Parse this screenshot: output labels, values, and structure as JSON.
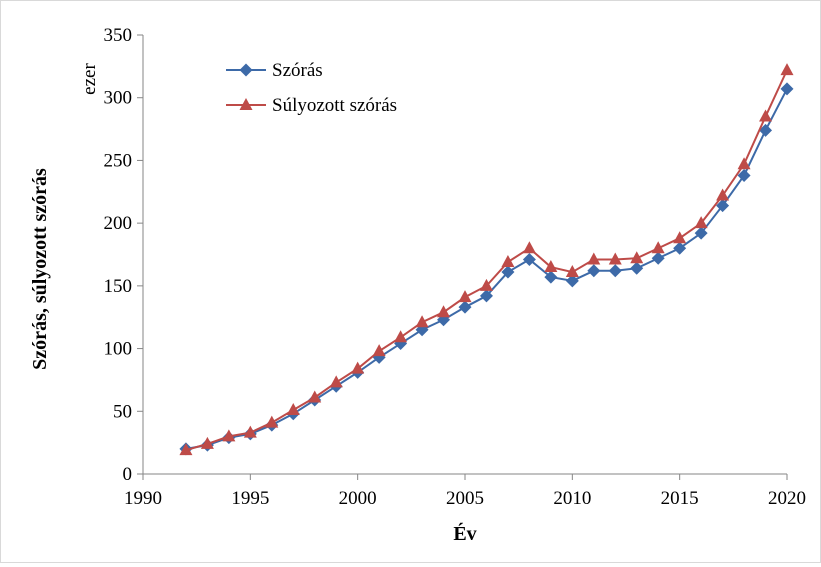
{
  "chart_data": {
    "type": "line",
    "title": "",
    "xlabel": "Év",
    "ylabel": "Szórás, súlyozott szórás",
    "unit_label": "ezer",
    "xlim": [
      1990,
      2020
    ],
    "ylim": [
      0,
      350
    ],
    "x_ticks": [
      "1990",
      "1995",
      "2000",
      "2005",
      "2010",
      "2015",
      "2020"
    ],
    "y_ticks": [
      "0",
      "50",
      "100",
      "150",
      "200",
      "250",
      "300",
      "350"
    ],
    "grid": false,
    "legend_position": "top-left",
    "x": [
      1992,
      1993,
      1994,
      1995,
      1996,
      1997,
      1998,
      1999,
      2000,
      2001,
      2002,
      2003,
      2004,
      2005,
      2006,
      2007,
      2008,
      2009,
      2010,
      2011,
      2012,
      2013,
      2014,
      2015,
      2016,
      2017,
      2018,
      2019,
      2020
    ],
    "series": [
      {
        "name": "Szórás",
        "color": "#3d6aa8",
        "marker": "diamond",
        "values": [
          20,
          23,
          29,
          32,
          39,
          48,
          59,
          70,
          81,
          93,
          104,
          115,
          123,
          133,
          142,
          161,
          171,
          157,
          154,
          162,
          162,
          164,
          172,
          180,
          192,
          214,
          238,
          274,
          307
        ]
      },
      {
        "name": "Súlyozott szórás",
        "color": "#be4b48",
        "marker": "triangle",
        "values": [
          19,
          24,
          30,
          33,
          41,
          51,
          61,
          73,
          84,
          98,
          109,
          121,
          129,
          141,
          150,
          169,
          180,
          165,
          161,
          171,
          171,
          172,
          180,
          188,
          200,
          222,
          247,
          285,
          322
        ]
      }
    ]
  }
}
